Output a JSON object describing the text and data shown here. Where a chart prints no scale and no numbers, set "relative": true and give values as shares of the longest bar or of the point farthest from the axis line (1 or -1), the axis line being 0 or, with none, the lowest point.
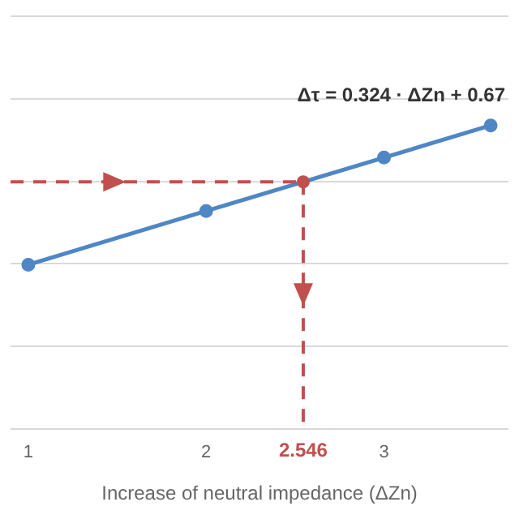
{
  "chart_data": {
    "type": "line",
    "relative": true,
    "xlabel": "Increase of neutral impedance (ΔZn)",
    "x": [
      1,
      2,
      3,
      3.6
    ],
    "series": [
      {
        "color": "#4f86c6",
        "values": [
          0.541,
          0.718,
          0.894,
          1
        ]
      }
    ],
    "xlim": [
      0.9,
      3.7
    ],
    "xticks": [
      1,
      2,
      3
    ],
    "ref_lines": [
      {
        "axis": "y",
        "value": 0.814,
        "label": null,
        "color": "#c0504d",
        "line_style": "dashed"
      },
      {
        "axis": "x",
        "value": 2.546,
        "label": "2.546",
        "color": "#c0504d",
        "line_style": "dashed"
      }
    ],
    "annotations": [
      "Δτ = 0.324 · ΔZn + 0.67"
    ],
    "grid": "y",
    "marker": "circle",
    "legend": false
  }
}
